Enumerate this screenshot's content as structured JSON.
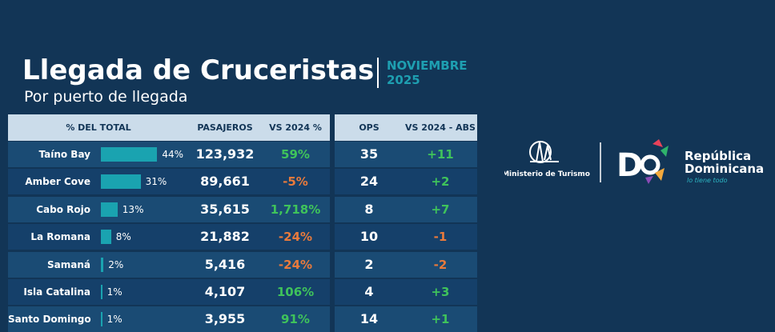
{
  "header": {
    "title": "Llegada de Cruceristas",
    "subtitle": "Por puerto de llegada",
    "period": "NOVIEMBRE 2025"
  },
  "table": {
    "headers": [
      "% DEL TOTAL",
      "PASAJEROS",
      "VS 2024 %",
      "OPS",
      "VS 2024 - ABS"
    ],
    "rows": [
      {
        "port": "Taíno Bay",
        "share": 44,
        "share_label": "44%",
        "passengers": "123,932",
        "vs2024": "59%",
        "ops": "35",
        "abs": "+11"
      },
      {
        "port": "Amber Cove",
        "share": 31,
        "share_label": "31%",
        "passengers": "89,661",
        "vs2024": "-5%",
        "ops": "24",
        "abs": "+2"
      },
      {
        "port": "Cabo Rojo",
        "share": 13,
        "share_label": "13%",
        "passengers": "35,615",
        "vs2024": "1,718%",
        "ops": "8",
        "abs": "+7"
      },
      {
        "port": "La Romana",
        "share": 8,
        "share_label": "8%",
        "passengers": "21,882",
        "vs2024": "-24%",
        "ops": "10",
        "abs": "-1"
      },
      {
        "port": "Samaná",
        "share": 2,
        "share_label": "2%",
        "passengers": "5,416",
        "vs2024": "-24%",
        "ops": "2",
        "abs": "-2"
      },
      {
        "port": "Isla Catalina",
        "share": 1,
        "share_label": "1%",
        "passengers": "4,107",
        "vs2024": "106%",
        "ops": "4",
        "abs": "+3"
      },
      {
        "port": "Santo Domingo",
        "share": 1,
        "share_label": "1%",
        "passengers": "3,955",
        "vs2024": "91%",
        "ops": "14",
        "abs": "+1"
      }
    ]
  },
  "logos": {
    "ministry": "Ministerio de Turismo",
    "country_line1": "República",
    "country_line2": "Dominicana",
    "slogan": "lo tiene todo"
  }
}
